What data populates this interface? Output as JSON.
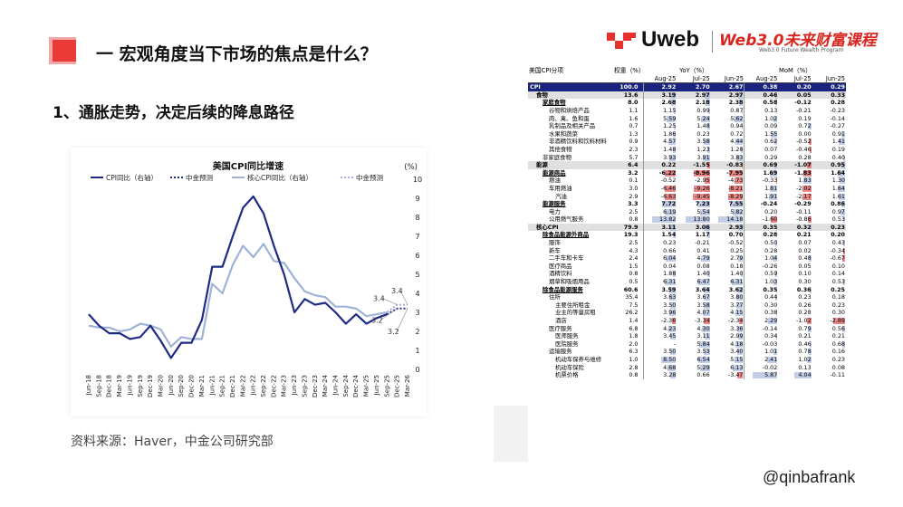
{
  "header": {
    "title": "一 宏观角度当下市场的焦点是什么？",
    "subtitle": "1、通胀走势，决定后续的降息路径",
    "source": "资料来源：Haver，中金公司研究部",
    "handle": "@qinbafrank"
  },
  "logo": {
    "brand": "Uweb",
    "program": "Web3.0未来财富课程",
    "program_en": "Web3.0 Future Wealth Program"
  },
  "colors": {
    "accent_red": "#e8312c",
    "dark_blue": "#1f2a85",
    "light_blue": "#9fb3d8",
    "cpi_row": "#1a237e",
    "neg_bar": "#e57373",
    "pos_bar": "#90a4d4"
  },
  "chart_data": {
    "type": "line",
    "title": "美国CPI同比增速",
    "unit_label": "(%)",
    "ylim": [
      0,
      10
    ],
    "yticks": [
      0,
      1,
      2,
      3,
      4,
      5,
      6,
      7,
      8,
      9,
      10
    ],
    "x": [
      "Jun-18",
      "Sep-18",
      "Dec-18",
      "Mar-19",
      "Jun-19",
      "Sep-19",
      "Dec-19",
      "Mar-20",
      "Jun-20",
      "Sep-20",
      "Dec-20",
      "Mar-21",
      "Jun-21",
      "Sep-21",
      "Dec-21",
      "Mar-22",
      "Jun-22",
      "Sep-22",
      "Dec-22",
      "Mar-23",
      "Jun-23",
      "Sep-23",
      "Dec-23",
      "Mar-24",
      "Jun-24",
      "Sep-24",
      "Dec-24",
      "Mar-25",
      "Jun-25",
      "Sep-25",
      "Dec-25",
      "Mar-26"
    ],
    "series": [
      {
        "name": "CPI同比（右轴）",
        "style": "solid-dark",
        "values": [
          2.9,
          2.3,
          1.9,
          1.9,
          1.6,
          1.7,
          2.3,
          1.5,
          0.6,
          1.4,
          1.4,
          2.6,
          5.4,
          5.4,
          7.0,
          8.5,
          9.1,
          8.2,
          6.5,
          5.0,
          3.0,
          3.7,
          3.4,
          3.5,
          3.0,
          2.4,
          2.9,
          2.4,
          2.7,
          2.9,
          null,
          null
        ]
      },
      {
        "name": "中金预测",
        "style": "dotted-dark",
        "values": [
          null,
          null,
          null,
          null,
          null,
          null,
          null,
          null,
          null,
          null,
          null,
          null,
          null,
          null,
          null,
          null,
          null,
          null,
          null,
          null,
          null,
          null,
          null,
          null,
          null,
          null,
          null,
          null,
          2.7,
          2.9,
          3.2,
          3.2
        ]
      },
      {
        "name": "核心CPI同比（右轴）",
        "style": "solid-light",
        "values": [
          2.3,
          2.2,
          2.2,
          2.0,
          2.1,
          2.4,
          2.3,
          2.1,
          1.2,
          1.7,
          1.6,
          1.6,
          4.5,
          4.0,
          5.5,
          6.5,
          5.9,
          6.6,
          5.7,
          5.6,
          4.8,
          4.1,
          3.9,
          3.8,
          3.3,
          3.3,
          3.2,
          2.8,
          2.9,
          3.0,
          null,
          null
        ]
      },
      {
        "name": "中金预测",
        "style": "dotted-light",
        "values": [
          null,
          null,
          null,
          null,
          null,
          null,
          null,
          null,
          null,
          null,
          null,
          null,
          null,
          null,
          null,
          null,
          null,
          null,
          null,
          null,
          null,
          null,
          null,
          null,
          null,
          null,
          null,
          null,
          2.9,
          3.0,
          3.4,
          3.4
        ]
      }
    ],
    "annotations": [
      "3.4",
      "3.4",
      "3.2",
      "3.2"
    ]
  },
  "table": {
    "header": {
      "category": "美国CPI分项",
      "weight": "权重（%）",
      "yoy": "YoY（%）",
      "mom": "MoM（%）",
      "months": [
        "Aug-25",
        "Jul-25",
        "Jun-25",
        "Aug-25",
        "Jul-25",
        "Jun-25"
      ]
    },
    "rows": [
      {
        "label": "CPI",
        "indent": 0,
        "style": "cpi",
        "w": "100.0",
        "v": [
          "2.92",
          "2.70",
          "2.67",
          "0.38",
          "0.20",
          "0.29"
        ]
      },
      {
        "label": "食物",
        "indent": 1,
        "style": "grp",
        "w": "13.6",
        "v": [
          "3.19",
          "2.97",
          "2.97",
          "0.46",
          "0.05",
          "0.33"
        ]
      },
      {
        "label": "家庭食物",
        "indent": 2,
        "style": "bold",
        "w": "8.0",
        "v": [
          "2.68",
          "2.18",
          "2.38",
          "0.58",
          "-0.12",
          "0.28"
        ]
      },
      {
        "label": "谷物和烘焙产品",
        "indent": 3,
        "style": "",
        "w": "1.1",
        "v": [
          "1.15",
          "0.99",
          "0.87",
          "0.13",
          "-0.21",
          "-0.23"
        ]
      },
      {
        "label": "肉、禽、鱼和蛋",
        "indent": 3,
        "style": "",
        "w": "1.6",
        "v": [
          "5.59",
          "5.24",
          "5.62",
          "1.02",
          "0.19",
          "-0.14"
        ]
      },
      {
        "label": "乳制品及相关产品",
        "indent": 3,
        "style": "",
        "w": "0.7",
        "v": [
          "1.25",
          "1.48",
          "0.94",
          "0.09",
          "0.72",
          "-0.27"
        ]
      },
      {
        "label": "水果和蔬菜",
        "indent": 3,
        "style": "",
        "w": "1.3",
        "v": [
          "1.86",
          "0.23",
          "0.72",
          "1.55",
          "0.00",
          "0.91"
        ]
      },
      {
        "label": "非酒精饮料和饮料材料",
        "indent": 3,
        "style": "",
        "w": "0.9",
        "v": [
          "4.57",
          "3.58",
          "4.44",
          "0.62",
          "-0.52",
          "1.41"
        ]
      },
      {
        "label": "其他食物",
        "indent": 3,
        "style": "",
        "w": "2.3",
        "v": [
          "1.48",
          "1.23",
          "1.28",
          "0.07",
          "-0.46",
          "0.19"
        ]
      },
      {
        "label": "非家庭食物",
        "indent": 2,
        "style": "",
        "w": "5.7",
        "v": [
          "3.93",
          "3.91",
          "3.83",
          "0.29",
          "0.28",
          "0.40"
        ]
      },
      {
        "label": "能源",
        "indent": 1,
        "style": "grp",
        "w": "6.4",
        "v": [
          "0.22",
          "-1.55",
          "-0.83",
          "0.69",
          "-1.07",
          "0.95"
        ]
      },
      {
        "label": "能源商品",
        "indent": 2,
        "style": "bold",
        "w": "3.2",
        "v": [
          "-6.22",
          "-8.96",
          "-7.95",
          "1.69",
          "-1.83",
          "1.64"
        ]
      },
      {
        "label": "燃油",
        "indent": 3,
        "style": "",
        "w": "0.1",
        "v": [
          "-0.52",
          "-2.95",
          "-4.73",
          "-0.33",
          "1.83",
          "1.30"
        ]
      },
      {
        "label": "车用燃油",
        "indent": 3,
        "style": "",
        "w": "3.0",
        "v": [
          "-6.46",
          "-9.26",
          "-8.21",
          "1.81",
          "-2.02",
          "1.64"
        ]
      },
      {
        "label": "汽油",
        "indent": 4,
        "style": "",
        "w": "2.9",
        "v": [
          "-6.63",
          "-9.45",
          "-8.29",
          "1.91",
          "-2.17",
          "1.61"
        ]
      },
      {
        "label": "能源服务",
        "indent": 2,
        "style": "bold",
        "w": "3.3",
        "v": [
          "7.72",
          "7.23",
          "7.55",
          "-0.24",
          "-0.29",
          "0.86"
        ]
      },
      {
        "label": "电力",
        "indent": 3,
        "style": "",
        "w": "2.5",
        "v": [
          "6.19",
          "5.54",
          "5.82",
          "0.20",
          "-0.11",
          "0.97"
        ]
      },
      {
        "label": "公用燃气服务",
        "indent": 3,
        "style": "",
        "w": "0.8",
        "v": [
          "13.82",
          "13.80",
          "14.18",
          "-1.60",
          "-0.86",
          "0.53"
        ]
      },
      {
        "label": "核心CPI",
        "indent": 1,
        "style": "grp",
        "w": "79.9",
        "v": [
          "3.11",
          "3.06",
          "2.93",
          "0.35",
          "0.32",
          "0.23"
        ]
      },
      {
        "label": "除食品能源外商品",
        "indent": 2,
        "style": "bold",
        "w": "19.3",
        "v": [
          "1.54",
          "1.17",
          "0.70",
          "0.28",
          "0.21",
          "0.20"
        ]
      },
      {
        "label": "服饰",
        "indent": 3,
        "style": "",
        "w": "2.5",
        "v": [
          "0.23",
          "-0.21",
          "-0.52",
          "0.50",
          "0.07",
          "0.43"
        ]
      },
      {
        "label": "新车",
        "indent": 3,
        "style": "",
        "w": "4.3",
        "v": [
          "0.66",
          "0.41",
          "0.25",
          "0.28",
          "0.02",
          "-0.34"
        ]
      },
      {
        "label": "二手车和卡车",
        "indent": 3,
        "style": "",
        "w": "2.4",
        "v": [
          "6.04",
          "4.79",
          "2.79",
          "1.04",
          "0.48",
          "-0.67"
        ]
      },
      {
        "label": "医疗商品",
        "indent": 3,
        "style": "",
        "w": "1.5",
        "v": [
          "0.04",
          "0.08",
          "0.18",
          "-0.26",
          "0.05",
          "0.10"
        ]
      },
      {
        "label": "酒精饮料",
        "indent": 3,
        "style": "",
        "w": "0.8",
        "v": [
          "1.88",
          "1.40",
          "1.40",
          "0.59",
          "0.10",
          "0.14"
        ]
      },
      {
        "label": "烟草和吸烟用品",
        "indent": 3,
        "style": "",
        "w": "0.5",
        "v": [
          "6.31",
          "6.47",
          "6.31",
          "1.03",
          "0.30",
          "0.53"
        ]
      },
      {
        "label": "除食品能源服务",
        "indent": 2,
        "style": "bold",
        "w": "60.6",
        "v": [
          "3.59",
          "3.64",
          "3.62",
          "0.35",
          "0.36",
          "0.25"
        ]
      },
      {
        "label": "住所",
        "indent": 3,
        "style": "",
        "w": "35.4",
        "v": [
          "3.63",
          "3.67",
          "3.80",
          "0.44",
          "0.23",
          "0.18"
        ]
      },
      {
        "label": "主要住所租金",
        "indent": 4,
        "style": "",
        "w": "7.5",
        "v": [
          "3.50",
          "3.58",
          "3.77",
          "0.30",
          "0.26",
          "0.23"
        ]
      },
      {
        "label": "业主的等量房租",
        "indent": 4,
        "style": "",
        "w": "26.2",
        "v": [
          "3.96",
          "4.07",
          "4.15",
          "0.38",
          "0.28",
          "0.30"
        ]
      },
      {
        "label": "酒店",
        "indent": 4,
        "style": "",
        "w": "1.4",
        "v": [
          "-2.36",
          "-3.34",
          "-2.34",
          "2.29",
          "-1.02",
          "-2.89"
        ]
      },
      {
        "label": "医疗服务",
        "indent": 3,
        "style": "",
        "w": "6.8",
        "v": [
          "4.23",
          "4.30",
          "3.36",
          "-0.14",
          "0.79",
          "0.56"
        ]
      },
      {
        "label": "医师服务",
        "indent": 4,
        "style": "",
        "w": "1.8",
        "v": [
          "3.45",
          "3.11",
          "2.99",
          "0.34",
          "0.21",
          "0.21"
        ]
      },
      {
        "label": "医院服务",
        "indent": 4,
        "style": "",
        "w": "2.0",
        "v": [
          "-",
          "5.84",
          "4.18",
          "-0.03",
          "0.46",
          "0.68"
        ]
      },
      {
        "label": "运输服务",
        "indent": 3,
        "style": "",
        "w": "6.3",
        "v": [
          "3.50",
          "3.53",
          "3.40",
          "1.01",
          "0.78",
          "0.16"
        ]
      },
      {
        "label": "机动车保养与维修",
        "indent": 4,
        "style": "",
        "w": "1.0",
        "v": [
          "8.50",
          "6.54",
          "5.15",
          "2.41",
          "1.02",
          "0.23"
        ]
      },
      {
        "label": "机动车保险",
        "indent": 4,
        "style": "",
        "w": "2.8",
        "v": [
          "4.68",
          "5.29",
          "6.13",
          "-0.02",
          "0.13",
          "0.08"
        ]
      },
      {
        "label": "机票价格",
        "indent": 4,
        "style": "",
        "w": "0.8",
        "v": [
          "3.28",
          "0.66",
          "-3.47",
          "5.87",
          "4.04",
          "-0.11"
        ]
      }
    ]
  }
}
